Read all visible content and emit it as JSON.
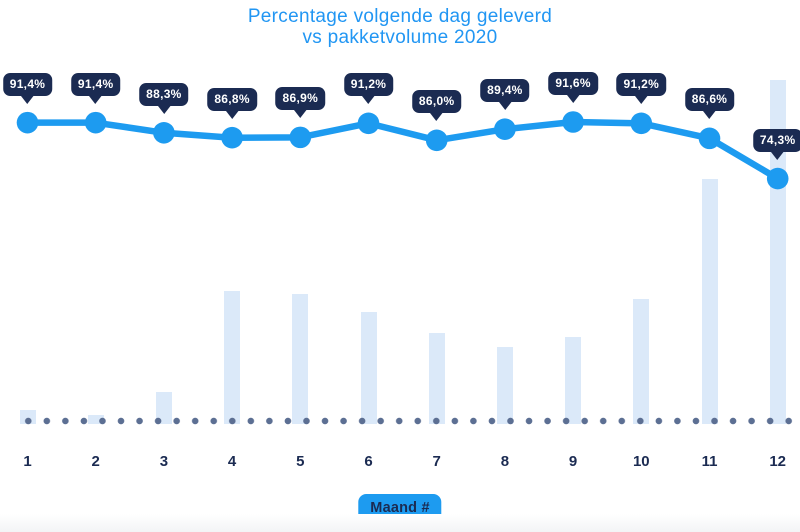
{
  "title": {
    "line1": "Percentage volgende dag geleverd",
    "line2": "vs pakketvolume 2020"
  },
  "x_axis": {
    "badge_label": "Maand #"
  },
  "chart_data": {
    "type": "line+bar",
    "title": "Percentage volgende dag geleverd vs pakketvolume 2020",
    "xlabel": "Maand #",
    "ylabel": "",
    "categories": [
      "1",
      "2",
      "3",
      "4",
      "5",
      "6",
      "7",
      "8",
      "9",
      "10",
      "11",
      "12"
    ],
    "series": [
      {
        "name": "percentage-volgende-dag-geleverd",
        "type": "line",
        "unit": "%",
        "values": [
          91.4,
          91.4,
          88.3,
          86.8,
          86.9,
          91.2,
          86.0,
          89.4,
          91.6,
          91.2,
          86.6,
          74.3
        ],
        "labels": [
          "91,4%",
          "91,4%",
          "88,3%",
          "86,8%",
          "86,9%",
          "91,2%",
          "86,0%",
          "89,4%",
          "91,6%",
          "91,2%",
          "86,6%",
          "74,3%"
        ]
      },
      {
        "name": "pakketvolume",
        "type": "bar",
        "unit": "relative-unlabeled-pixel-height",
        "values": [
          14,
          9,
          32,
          133,
          130,
          112,
          91,
          77,
          87,
          125,
          245,
          344
        ]
      }
    ],
    "baseline_dotted": true,
    "grid": false,
    "legend": false,
    "colors": {
      "accent": "#1d9bf0",
      "navy": "#1b2b52",
      "bar": "#dbe9f9",
      "dot": "#5c6f93",
      "title": "#2196f3"
    }
  }
}
